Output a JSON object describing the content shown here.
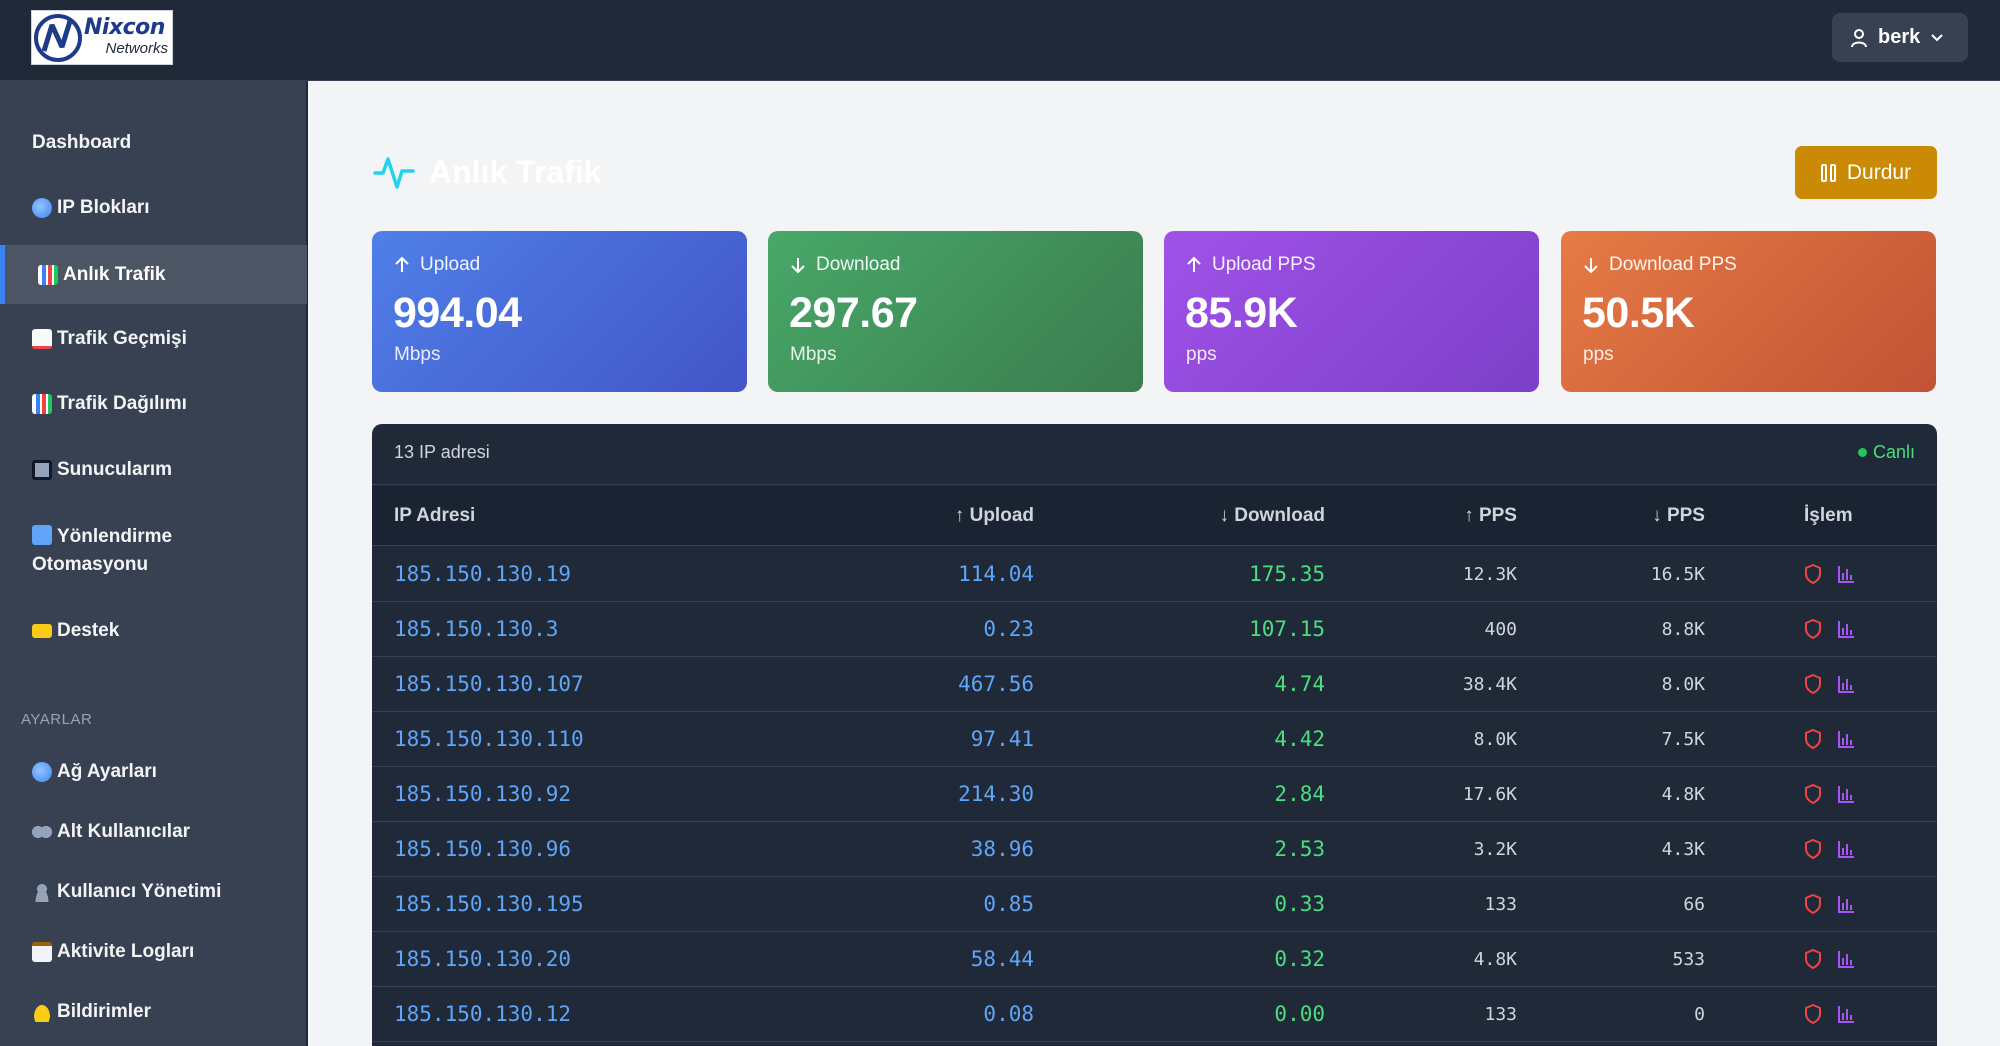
{
  "header": {
    "logo_brand": "Nixcon",
    "logo_sub": "Networks",
    "user_name": "berk"
  },
  "sidebar": {
    "items": [
      {
        "label": "Dashboard"
      },
      {
        "label": "IP Blokları",
        "icon": "globe-icon"
      },
      {
        "label": "Anlık Trafik",
        "icon": "bar-chart-icon",
        "active": true
      },
      {
        "label": "Trafik Geçmişi",
        "icon": "line-chart-icon"
      },
      {
        "label": "Trafik Dağılımı",
        "icon": "bar-chart-icon"
      },
      {
        "label": "Sunucularım",
        "icon": "monitor-icon"
      },
      {
        "label": "Yönlendirme Otomasyonu",
        "icon": "repeat-icon"
      },
      {
        "label": "Destek",
        "icon": "ticket-icon"
      }
    ],
    "section_label": "AYARLAR",
    "settings_items": [
      {
        "label": "Ağ Ayarları",
        "icon": "globe-icon"
      },
      {
        "label": "Alt Kullanıcılar",
        "icon": "users-icon"
      },
      {
        "label": "Kullanıcı Yönetimi",
        "icon": "user-icon"
      },
      {
        "label": "Aktivite Logları",
        "icon": "clipboard-icon"
      },
      {
        "label": "Bildirimler",
        "icon": "bell-icon"
      }
    ]
  },
  "page": {
    "title": "Anlık Trafik",
    "stop_label": "Durdur"
  },
  "stats": [
    {
      "label": "Upload",
      "value": "994.04",
      "unit": "Mbps",
      "color": "#4a6fdc"
    },
    {
      "label": "Download",
      "value": "297.67",
      "unit": "Mbps",
      "color": "#43965e"
    },
    {
      "label": "Upload PPS",
      "value": "85.9K",
      "unit": "pps",
      "color": "#9049dc"
    },
    {
      "label": "Download PPS",
      "value": "50.5K",
      "unit": "pps",
      "color": "#d9663d"
    }
  ],
  "table": {
    "count_text": "13 IP adresi",
    "live_label": "Canlı",
    "columns": [
      "IP Adresi",
      "↑ Upload",
      "↓ Download",
      "↑ PPS",
      "↓ PPS",
      "İşlem"
    ],
    "rows": [
      {
        "ip": "185.150.130.19",
        "upload": "114.04",
        "download": "175.35",
        "pps_up": "12.3K",
        "pps_down": "16.5K"
      },
      {
        "ip": "185.150.130.3",
        "upload": "0.23",
        "download": "107.15",
        "pps_up": "400",
        "pps_down": "8.8K"
      },
      {
        "ip": "185.150.130.107",
        "upload": "467.56",
        "download": "4.74",
        "pps_up": "38.4K",
        "pps_down": "8.0K"
      },
      {
        "ip": "185.150.130.110",
        "upload": "97.41",
        "download": "4.42",
        "pps_up": "8.0K",
        "pps_down": "7.5K"
      },
      {
        "ip": "185.150.130.92",
        "upload": "214.30",
        "download": "2.84",
        "pps_up": "17.6K",
        "pps_down": "4.8K"
      },
      {
        "ip": "185.150.130.96",
        "upload": "38.96",
        "download": "2.53",
        "pps_up": "3.2K",
        "pps_down": "4.3K"
      },
      {
        "ip": "185.150.130.195",
        "upload": "0.85",
        "download": "0.33",
        "pps_up": "133",
        "pps_down": "66"
      },
      {
        "ip": "185.150.130.20",
        "upload": "58.44",
        "download": "0.32",
        "pps_up": "4.8K",
        "pps_down": "533"
      },
      {
        "ip": "185.150.130.12",
        "upload": "0.08",
        "download": "0.00",
        "pps_up": "133",
        "pps_down": "0"
      }
    ]
  },
  "colors": {
    "accent": "#3b82f6",
    "stop_button": "#ca8a04",
    "shield_icon": "#ef4444",
    "chart_icon": "#a855f7"
  }
}
